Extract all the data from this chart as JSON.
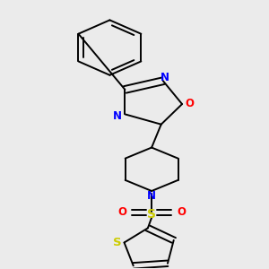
{
  "background_color": "#ebebeb",
  "bond_color": "#000000",
  "figsize": [
    3.0,
    3.0
  ],
  "dpi": 100,
  "atom_colors": {
    "N": "#0000ff",
    "O": "#ff0000",
    "S_sulfonyl": "#cccc00",
    "S_thio": "#cccc00"
  },
  "font_size": 8.5
}
